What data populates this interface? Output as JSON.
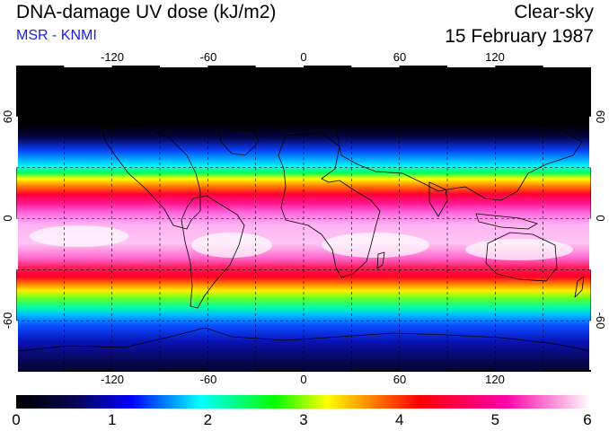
{
  "header": {
    "title": "DNA-damage UV dose (kJ/m2)",
    "subtitle": "MSR - KNMI",
    "condition": "Clear-sky",
    "date": "15 February 1987"
  },
  "map": {
    "lon_range": [
      -180,
      180
    ],
    "lat_range": [
      -90,
      90
    ],
    "lon_ticks": [
      "-120",
      "-60",
      "0",
      "60",
      "120"
    ],
    "lat_ticks": [
      "60",
      "0",
      "-60"
    ],
    "grid": "dashed, 30 degree spacing",
    "coastlines": "black",
    "colors": {
      "polar_night": "#000000",
      "low": "#0033ff",
      "mid": "#33ff33",
      "high": "#ff0033",
      "peak": "#ffffff"
    }
  },
  "colorbar": {
    "labels": [
      "0",
      "1",
      "2",
      "3",
      "4",
      "5",
      "6"
    ],
    "range": [
      0,
      6
    ],
    "stops": [
      "#000000",
      "#06064e",
      "#0000ff",
      "#00ffff",
      "#00ff00",
      "#ffff00",
      "#ff0000",
      "#ff00aa",
      "#ffffff"
    ]
  }
}
